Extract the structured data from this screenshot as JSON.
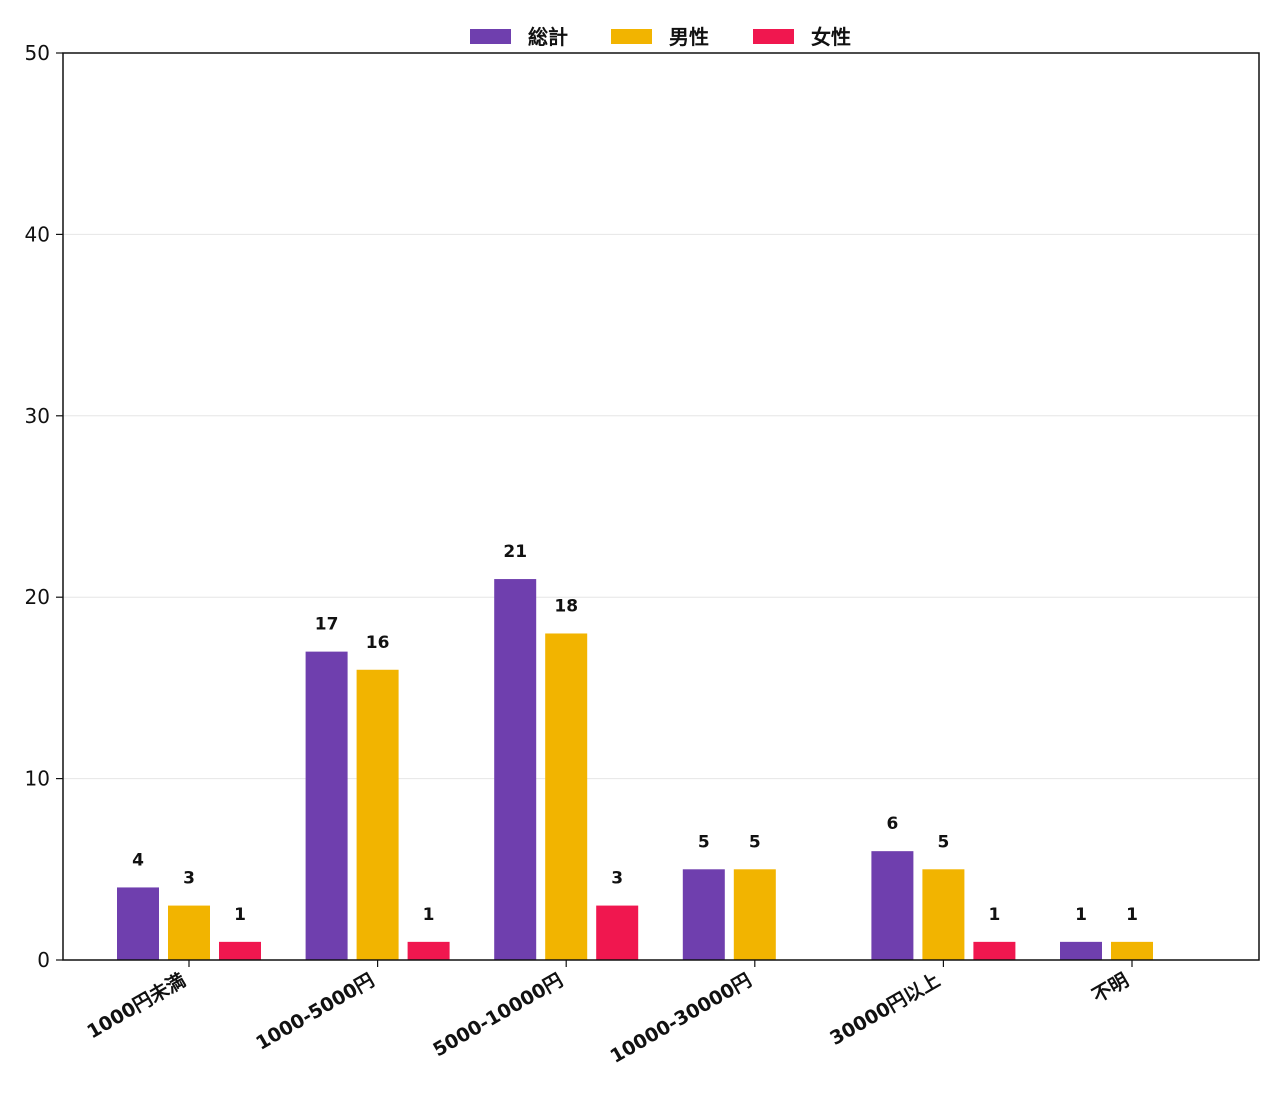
{
  "chart_data": {
    "type": "bar",
    "categories": [
      "1000円未満",
      "1000-5000円",
      "5000-10000円",
      "10000-30000円",
      "30000円以上",
      "不明"
    ],
    "series": [
      {
        "name": "総計",
        "color": "#6f3fae",
        "values": [
          4,
          17,
          21,
          5,
          6,
          1
        ]
      },
      {
        "name": "男性",
        "color": "#f2b400",
        "values": [
          3,
          16,
          18,
          5,
          5,
          1
        ]
      },
      {
        "name": "女性",
        "color": "#f0174f",
        "values": [
          1,
          1,
          3,
          null,
          1,
          null
        ]
      }
    ],
    "ylim": [
      0,
      50
    ],
    "yticks": [
      0,
      10,
      20,
      30,
      40,
      50
    ],
    "grid": "y",
    "legend": "top-center"
  }
}
